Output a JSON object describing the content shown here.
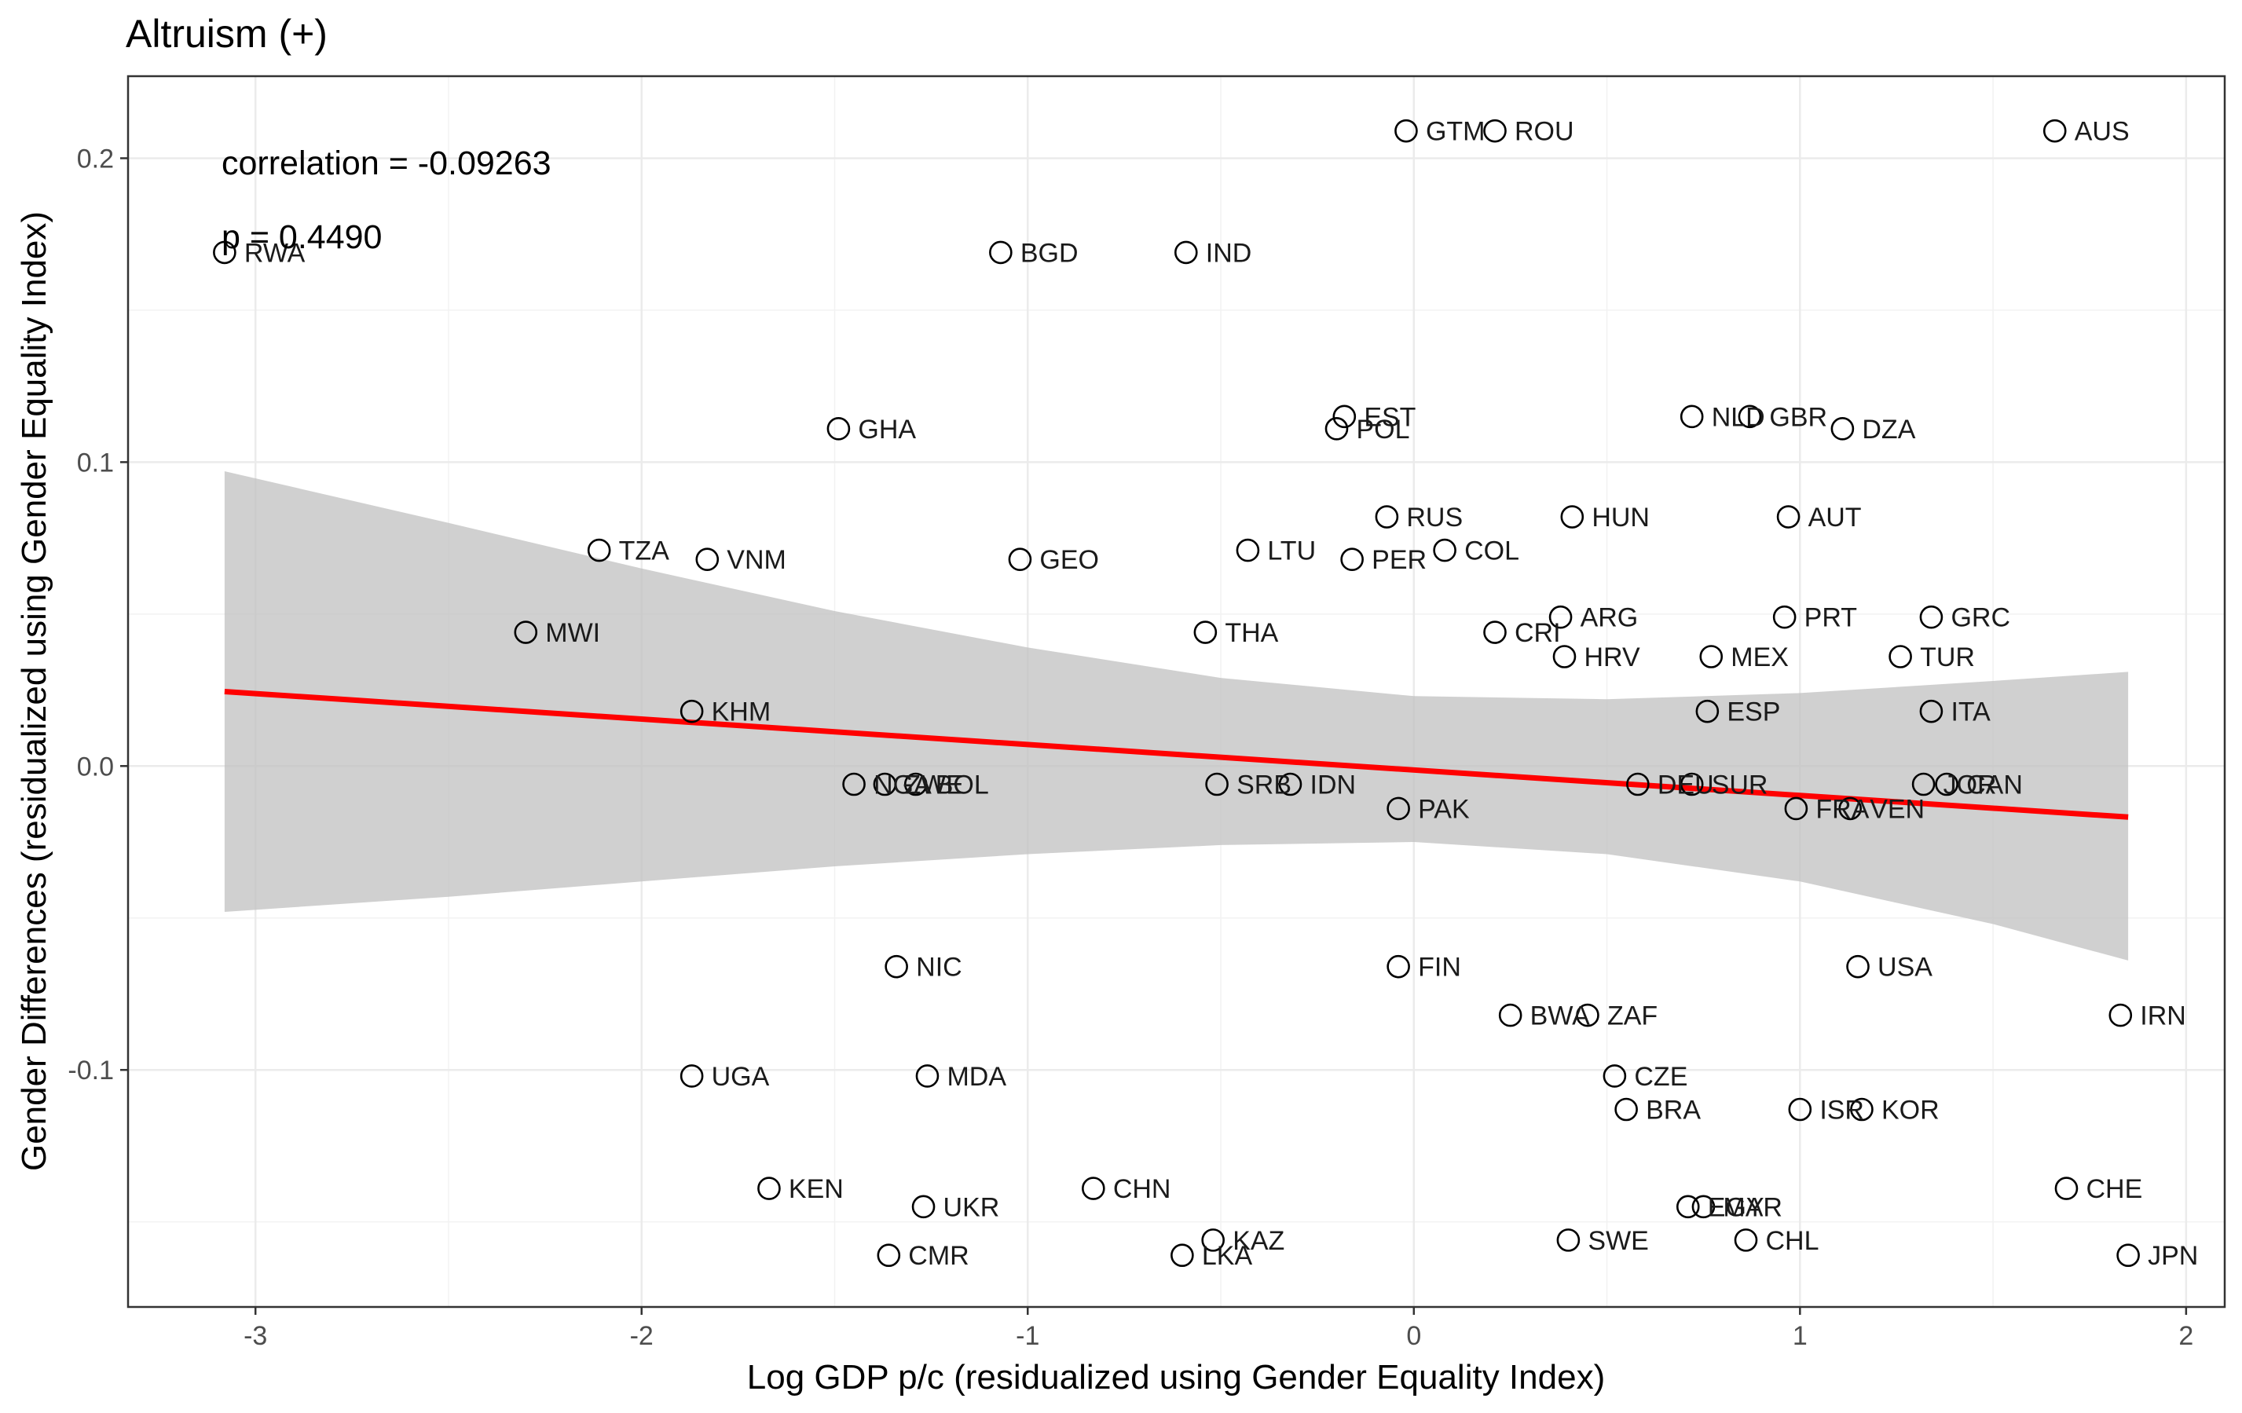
{
  "chart_data": {
    "type": "scatter",
    "title": "Altruism (+)",
    "xlabel": "Log GDP p/c (residualized using Gender Equality Index)",
    "ylabel": "Gender Differences (residualized using Gender Equality Index)",
    "xlim": [
      -3.33,
      2.1
    ],
    "ylim": [
      -0.178,
      0.227
    ],
    "x_ticks": [
      -3,
      -2,
      -1,
      0,
      1,
      2
    ],
    "x_tick_labels": [
      "-3",
      "-2",
      "-1",
      "0",
      "1",
      "2"
    ],
    "y_ticks": [
      -0.1,
      0.0,
      0.1,
      0.2
    ],
    "y_tick_labels": [
      "-0.1",
      "0.0",
      "0.1",
      "0.2"
    ],
    "grid": true,
    "annotations": [
      "correlation = -0.09263",
      "p = 0.4490"
    ],
    "colors": {
      "fit_line": "#ff0000",
      "confidence_band": "#bebebe",
      "points": "#000000"
    },
    "fit_line": {
      "x": [
        -3.08,
        1.85
      ],
      "y": [
        0.0245,
        -0.0168
      ]
    },
    "confidence_band": {
      "x": [
        -3.08,
        -2.5,
        -2.0,
        -1.5,
        -1.0,
        -0.5,
        0.0,
        0.5,
        1.0,
        1.5,
        1.85
      ],
      "upper": [
        0.097,
        0.08,
        0.065,
        0.051,
        0.039,
        0.029,
        0.023,
        0.022,
        0.024,
        0.028,
        0.031
      ],
      "lower": [
        -0.048,
        -0.043,
        -0.038,
        -0.033,
        -0.029,
        -0.026,
        -0.025,
        -0.029,
        -0.038,
        -0.052,
        -0.064
      ]
    },
    "points": [
      {
        "label": "GTM",
        "x": -0.02,
        "y": 0.209
      },
      {
        "label": "ROU",
        "x": 0.21,
        "y": 0.209
      },
      {
        "label": "AUS",
        "x": 1.66,
        "y": 0.209
      },
      {
        "label": "RWA",
        "x": -3.08,
        "y": 0.169
      },
      {
        "label": "BGD",
        "x": -1.07,
        "y": 0.169
      },
      {
        "label": "IND",
        "x": -0.59,
        "y": 0.169
      },
      {
        "label": "GHA",
        "x": -1.49,
        "y": 0.111
      },
      {
        "label": "EST",
        "x": -0.18,
        "y": 0.115
      },
      {
        "label": "POL",
        "x": -0.2,
        "y": 0.111
      },
      {
        "label": "NLD",
        "x": 0.72,
        "y": 0.115
      },
      {
        "label": "GBR",
        "x": 0.87,
        "y": 0.115
      },
      {
        "label": "DZA",
        "x": 1.11,
        "y": 0.111
      },
      {
        "label": "RUS",
        "x": -0.07,
        "y": 0.082
      },
      {
        "label": "HUN",
        "x": 0.41,
        "y": 0.082
      },
      {
        "label": "AUT",
        "x": 0.97,
        "y": 0.082
      },
      {
        "label": "TZA",
        "x": -2.11,
        "y": 0.071
      },
      {
        "label": "VNM",
        "x": -1.83,
        "y": 0.068
      },
      {
        "label": "GEO",
        "x": -1.02,
        "y": 0.068
      },
      {
        "label": "LTU",
        "x": -0.43,
        "y": 0.071
      },
      {
        "label": "PER",
        "x": -0.16,
        "y": 0.068
      },
      {
        "label": "COL",
        "x": 0.08,
        "y": 0.071
      },
      {
        "label": "MWI",
        "x": -2.3,
        "y": 0.044
      },
      {
        "label": "THA",
        "x": -0.54,
        "y": 0.044
      },
      {
        "label": "CRI",
        "x": 0.21,
        "y": 0.044
      },
      {
        "label": "ARG",
        "x": 0.38,
        "y": 0.049
      },
      {
        "label": "PRT",
        "x": 0.96,
        "y": 0.049
      },
      {
        "label": "GRC",
        "x": 1.34,
        "y": 0.049
      },
      {
        "label": "HRV",
        "x": 0.39,
        "y": 0.036
      },
      {
        "label": "MEX",
        "x": 0.77,
        "y": 0.036
      },
      {
        "label": "TUR",
        "x": 1.26,
        "y": 0.036
      },
      {
        "label": "KHM",
        "x": -1.87,
        "y": 0.018
      },
      {
        "label": "ESP",
        "x": 0.76,
        "y": 0.018
      },
      {
        "label": "ITA",
        "x": 1.34,
        "y": 0.018
      },
      {
        "label": "NGA",
        "x": -1.45,
        "y": -0.006
      },
      {
        "label": "ZWE",
        "x": -1.37,
        "y": -0.006
      },
      {
        "label": "BOL",
        "x": -1.29,
        "y": -0.006
      },
      {
        "label": "SRB",
        "x": -0.51,
        "y": -0.006
      },
      {
        "label": "IDN",
        "x": -0.32,
        "y": -0.006
      },
      {
        "label": "DEU",
        "x": 0.58,
        "y": -0.006
      },
      {
        "label": "SUR",
        "x": 0.72,
        "y": -0.006
      },
      {
        "label": "JOR",
        "x": 1.32,
        "y": -0.006
      },
      {
        "label": "CAN",
        "x": 1.38,
        "y": -0.006
      },
      {
        "label": "PAK",
        "x": -0.04,
        "y": -0.014
      },
      {
        "label": "FRA",
        "x": 0.99,
        "y": -0.014
      },
      {
        "label": "VEN",
        "x": 1.13,
        "y": -0.014
      },
      {
        "label": "NIC",
        "x": -1.34,
        "y": -0.066
      },
      {
        "label": "FIN",
        "x": -0.04,
        "y": -0.066
      },
      {
        "label": "USA",
        "x": 1.15,
        "y": -0.066
      },
      {
        "label": "BWA",
        "x": 0.25,
        "y": -0.082
      },
      {
        "label": "ZAF",
        "x": 0.45,
        "y": -0.082
      },
      {
        "label": "IRN",
        "x": 1.83,
        "y": -0.082
      },
      {
        "label": "UGA",
        "x": -1.87,
        "y": -0.102
      },
      {
        "label": "MDA",
        "x": -1.26,
        "y": -0.102
      },
      {
        "label": "CZE",
        "x": 0.52,
        "y": -0.102
      },
      {
        "label": "BRA",
        "x": 0.55,
        "y": -0.113
      },
      {
        "label": "ISR",
        "x": 1.0,
        "y": -0.113
      },
      {
        "label": "KOR",
        "x": 1.16,
        "y": -0.113
      },
      {
        "label": "KEN",
        "x": -1.67,
        "y": -0.139
      },
      {
        "label": "UKR",
        "x": -1.27,
        "y": -0.145
      },
      {
        "label": "CHN",
        "x": -0.83,
        "y": -0.139
      },
      {
        "label": "EGY",
        "x": 0.71,
        "y": -0.145
      },
      {
        "label": "MAR",
        "x": 0.75,
        "y": -0.145
      },
      {
        "label": "CHE",
        "x": 1.69,
        "y": -0.139
      },
      {
        "label": "CMR",
        "x": -1.36,
        "y": -0.161
      },
      {
        "label": "KAZ",
        "x": -0.52,
        "y": -0.156
      },
      {
        "label": "LKA",
        "x": -0.6,
        "y": -0.161
      },
      {
        "label": "SWE",
        "x": 0.4,
        "y": -0.156
      },
      {
        "label": "CHL",
        "x": 0.86,
        "y": -0.156
      },
      {
        "label": "JPN",
        "x": 1.85,
        "y": -0.161
      }
    ]
  }
}
